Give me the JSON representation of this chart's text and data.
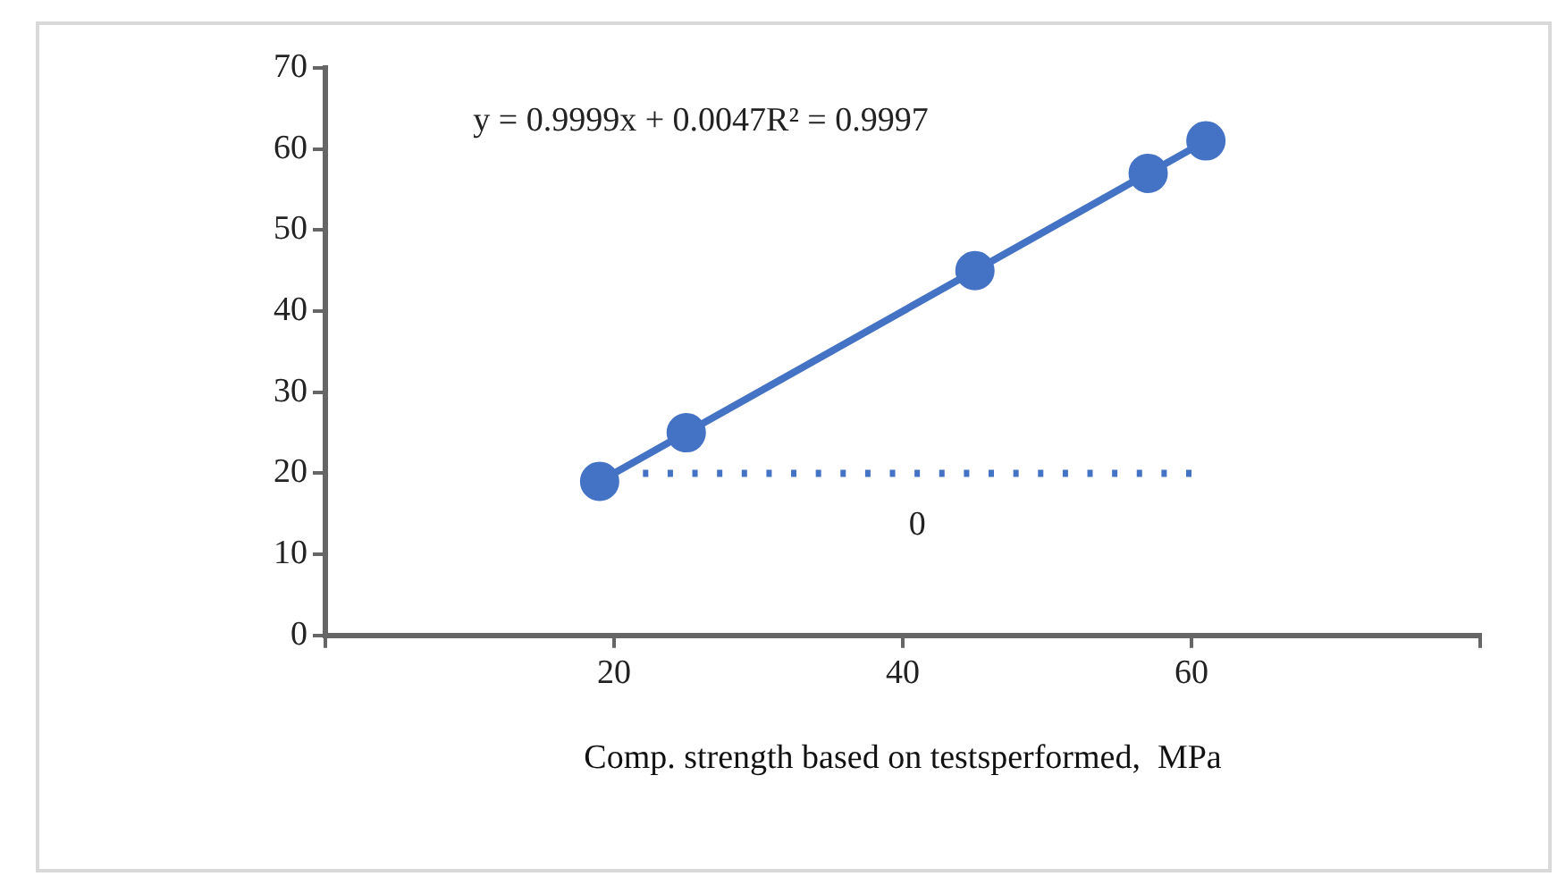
{
  "chart_data": {
    "type": "line",
    "xlabel": "Comp. strength based on testsperformed,  MPa",
    "annotations": [
      "y = 0.9999x + 0.0047R² = 0.9997",
      "0"
    ],
    "xlim": [
      0,
      80
    ],
    "xticks": [
      {
        "value": 0,
        "label": null
      },
      20,
      40,
      60,
      {
        "value": 80,
        "label": null
      }
    ],
    "ylim": [
      0,
      70
    ],
    "yticks": [
      0,
      10,
      20,
      30,
      40,
      50,
      60,
      70
    ],
    "grid": false,
    "legend": false,
    "marker": "circle",
    "series": [
      {
        "color": "#4472c4",
        "x": [
          19,
          25,
          45,
          57,
          61
        ],
        "values": [
          19,
          25,
          45,
          57,
          61
        ],
        "line_style": "solid"
      },
      {
        "color": "#4472c4",
        "x": [
          22,
          60
        ],
        "values": [
          20,
          20
        ],
        "marker": "none",
        "line_style": "dotted"
      }
    ]
  }
}
